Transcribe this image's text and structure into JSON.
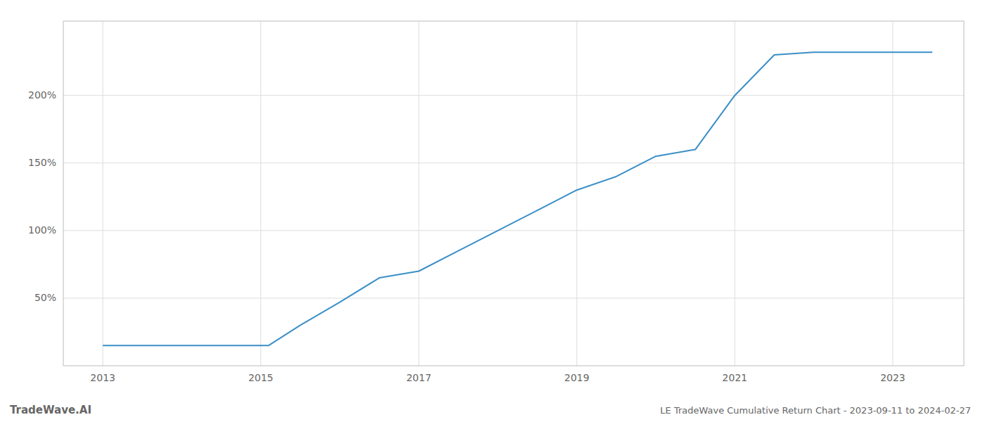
{
  "chart_data": {
    "type": "line",
    "title": "LE TradeWave Cumulative Return Chart - 2023-09-11 to 2024-02-27",
    "annotations": [
      "TradeWave.AI"
    ],
    "color": "#3a8fc7",
    "x": [
      2013.0,
      2013.5,
      2014.0,
      2014.5,
      2015.0,
      2015.1,
      2015.5,
      2016.0,
      2016.5,
      2017.0,
      2017.5,
      2018.0,
      2018.5,
      2019.0,
      2019.5,
      2020.0,
      2020.5,
      2021.0,
      2021.5,
      2022.0,
      2022.5,
      2023.0,
      2023.5
    ],
    "values": [
      15,
      15,
      15,
      15,
      15,
      15,
      30,
      47,
      65,
      70,
      85,
      100,
      115,
      130,
      140,
      155,
      160,
      200,
      230,
      232,
      232,
      232,
      232
    ],
    "xlim": [
      2012.5,
      2023.9
    ],
    "ylim": [
      0,
      255
    ],
    "xticks": [
      2013,
      2015,
      2017,
      2019,
      2021,
      2023
    ],
    "yticks": [
      {
        "value": 50,
        "label": "50%"
      },
      {
        "value": 100,
        "label": "100%"
      },
      {
        "value": 150,
        "label": "150%"
      },
      {
        "value": 200,
        "label": "200%"
      }
    ],
    "grid": true
  }
}
